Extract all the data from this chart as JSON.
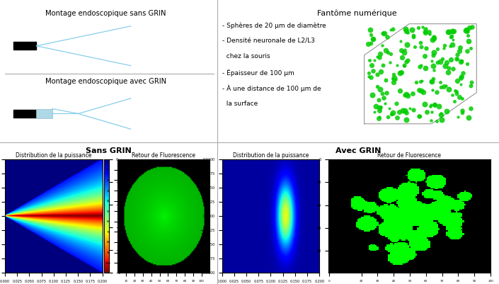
{
  "title_sans_grin": "Montage endoscopique sans GRIN",
  "title_avec_grin": "Montage endoscopique avec GRIN",
  "title_phantom": "Fantôme numérique",
  "bullet_points": [
    "Sphères de 20 μm de diamètre",
    "Densité neuronale de L2/L3",
    "  chez la souris",
    "Épaisseur de 100 μm",
    "À une distance de 100 μm de",
    "  la surface"
  ],
  "sans_grin_label": "Sans GRIN",
  "avec_grin_label": "Avec GRIN",
  "distrib_title": "Distribution de la puissance",
  "retour_title": "Retour de Fluorescence",
  "bg_color": "#ffffff"
}
